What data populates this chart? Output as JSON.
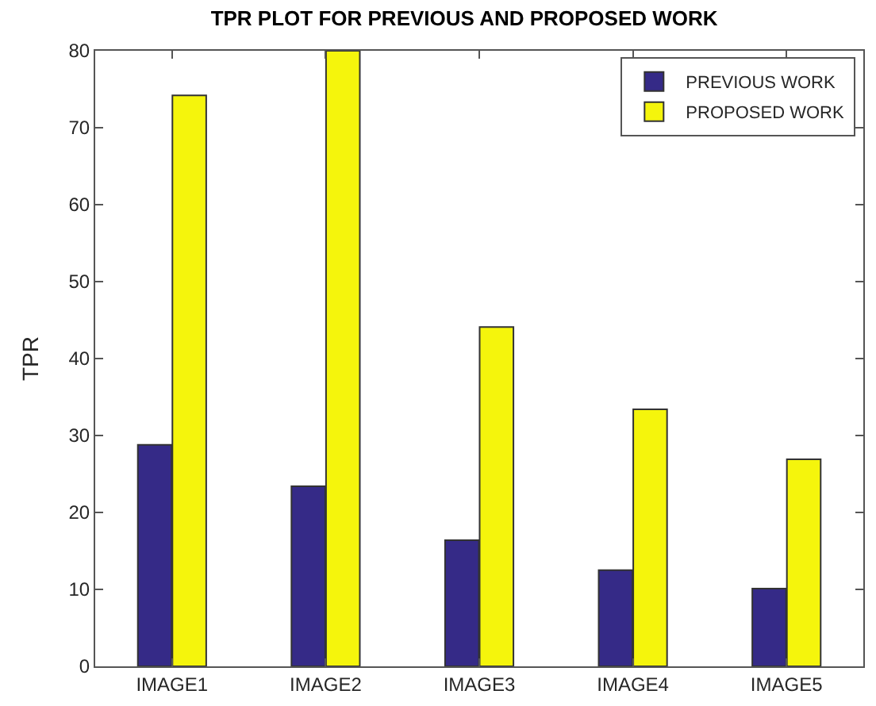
{
  "chart_data": {
    "type": "bar",
    "title": "TPR PLOT FOR PREVIOUS AND PROPOSED WORK",
    "ylabel": "TPR",
    "categories": [
      "IMAGE1",
      "IMAGE2",
      "IMAGE3",
      "IMAGE4",
      "IMAGE5"
    ],
    "series": [
      {
        "name": "PREVIOUS WORK",
        "color": "#352a87",
        "values": [
          28.8,
          23.4,
          16.4,
          12.5,
          10.1
        ]
      },
      {
        "name": "PROPOSED WORK",
        "color": "#f5f50c",
        "values": [
          74.2,
          80,
          44.1,
          33.4,
          26.9
        ]
      }
    ],
    "ylim": [
      0,
      80
    ],
    "yticks": [
      0,
      10,
      20,
      30,
      40,
      50,
      60,
      70,
      80
    ],
    "legend": "top right"
  }
}
